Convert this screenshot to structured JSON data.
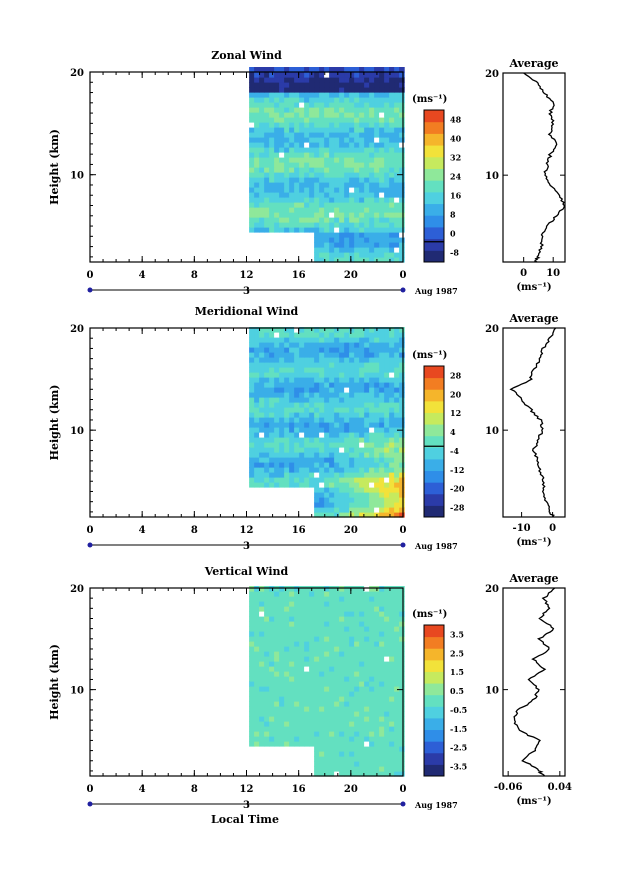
{
  "figure": {
    "x_axis_label": "Local Time",
    "y_axis_label": "Height (km)",
    "date_label": "Aug 1987",
    "day_marker": "3",
    "unit_label": "(ms⁻¹)",
    "average_title": "Average"
  },
  "chart_data": [
    {
      "type": "heatmap",
      "title": "Zonal Wind",
      "xlabel": "",
      "ylabel": "Height (km)",
      "xlim": [
        0,
        24
      ],
      "ylim": [
        1.5,
        20
      ],
      "x_ticks": [
        "0",
        "4",
        "8",
        "12",
        "16",
        "20",
        "0"
      ],
      "y_ticks": [
        "10",
        "20"
      ],
      "colorbar": {
        "label": "(ms⁻¹)",
        "ticks": [
          "48",
          "40",
          "32",
          "24",
          "16",
          "8",
          "0",
          "-8"
        ],
        "range": [
          -8,
          52
        ],
        "zero_line": 0
      },
      "data_coverage": {
        "start_hour": 12.2,
        "min_height_start": 4.0,
        "step_hour": 17.0,
        "min_height_after_step": 1.5
      },
      "average_profile": {
        "title": "Average",
        "xlabel": "(ms⁻¹)",
        "x_ticks": [
          "0",
          "10"
        ],
        "xlim": [
          -7,
          14
        ],
        "y_ticks": [
          "10",
          "20"
        ],
        "height": [
          1.5,
          2,
          3,
          4,
          5,
          6,
          7,
          8,
          9,
          10,
          11,
          12,
          13,
          14,
          15,
          16,
          17,
          18,
          19,
          20
        ],
        "value": [
          4,
          5,
          6,
          6,
          8,
          11,
          14,
          12,
          9,
          7,
          8,
          9,
          11,
          9,
          10,
          9,
          10,
          7,
          5,
          0
        ]
      }
    },
    {
      "type": "heatmap",
      "title": "Meridional Wind",
      "xlabel": "",
      "ylabel": "Height (km)",
      "xlim": [
        0,
        24
      ],
      "ylim": [
        1.5,
        20
      ],
      "x_ticks": [
        "0",
        "4",
        "8",
        "12",
        "16",
        "20",
        "0"
      ],
      "y_ticks": [
        "10",
        "20"
      ],
      "colorbar": {
        "label": "(ms⁻¹)",
        "ticks": [
          "28",
          "20",
          "12",
          "4",
          "-4",
          "-12",
          "-20",
          "-28"
        ],
        "range": [
          -30,
          34
        ],
        "zero_line": 0
      },
      "data_coverage": {
        "start_hour": 12.2,
        "min_height_start": 4.0,
        "step_hour": 17.0,
        "min_height_after_step": 1.5
      },
      "average_profile": {
        "title": "Average",
        "xlabel": "(ms⁻¹)",
        "x_ticks": [
          "-10",
          "0"
        ],
        "xlim": [
          -16,
          4
        ],
        "y_ticks": [
          "10",
          "20"
        ],
        "height": [
          1.5,
          2,
          3,
          4,
          5,
          6,
          7,
          8,
          9,
          10,
          11,
          12,
          13,
          14,
          15,
          16,
          17,
          18,
          19,
          20
        ],
        "value": [
          0.5,
          -1,
          -2,
          -3,
          -3,
          -4,
          -5,
          -6,
          -5,
          -3,
          -4,
          -7,
          -10,
          -13,
          -7,
          -6,
          -4,
          -3,
          -1,
          1
        ]
      }
    },
    {
      "type": "heatmap",
      "title": "Vertical Wind",
      "xlabel": "Local Time",
      "ylabel": "Height (km)",
      "xlim": [
        0,
        24
      ],
      "ylim": [
        1.5,
        20
      ],
      "x_ticks": [
        "0",
        "4",
        "8",
        "12",
        "16",
        "20",
        "0"
      ],
      "y_ticks": [
        "10",
        "20"
      ],
      "colorbar": {
        "label": "(ms⁻¹)",
        "ticks": [
          "3.5",
          "2.5",
          "1.5",
          "0.5",
          "-0.5",
          "-1.5",
          "-2.5",
          "-3.5"
        ],
        "range": [
          -4,
          4
        ],
        "zero_line": null
      },
      "data_coverage": {
        "start_hour": 12.2,
        "min_height_start": 4.0,
        "step_hour": 17.0,
        "min_height_after_step": 1.5
      },
      "average_profile": {
        "title": "Average",
        "xlabel": "(ms⁻¹)",
        "x_ticks": [
          "-0.06",
          "0.04"
        ],
        "xlim": [
          -0.07,
          0.05
        ],
        "y_ticks": [
          "10",
          "20"
        ],
        "height": [
          1.5,
          2,
          3,
          4,
          5,
          6,
          7,
          8,
          9,
          10,
          11,
          12,
          13,
          14,
          15,
          16,
          17,
          18,
          19,
          20
        ],
        "value": [
          0.01,
          0.0,
          -0.03,
          -0.01,
          0.0,
          -0.04,
          -0.05,
          -0.04,
          -0.01,
          0.0,
          -0.02,
          0.01,
          -0.01,
          0.02,
          0.0,
          0.03,
          0.0,
          0.02,
          0.01,
          0.03
        ]
      }
    }
  ]
}
